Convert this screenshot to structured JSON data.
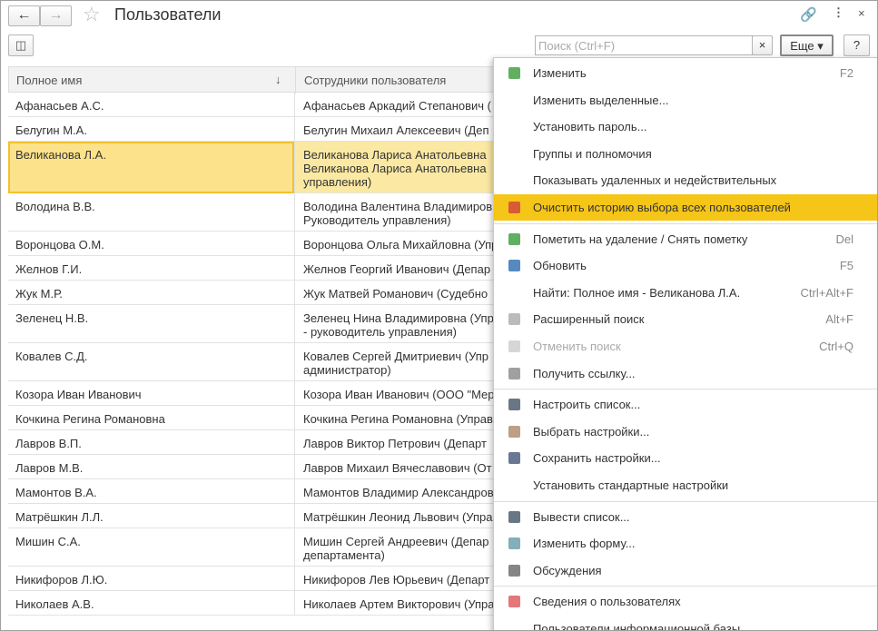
{
  "header": {
    "title": "Пользователи"
  },
  "toolbar": {
    "search_placeholder": "Поиск (Ctrl+F)",
    "more_button": "Еще",
    "help_button": "?"
  },
  "table": {
    "columns": [
      "Полное имя",
      "Сотрудники пользователя"
    ],
    "rows": [
      {
        "name": "Афанасьев А.С.",
        "employee": [
          "Афанасьев Аркадий Степанович ("
        ]
      },
      {
        "name": "Белугин М.А.",
        "employee": [
          "Белугин Михаил Алексеевич (Деп"
        ]
      },
      {
        "name": "Великанова Л.А.",
        "employee": [
          "Великанова Лариса Анатольевна",
          "Великанова Лариса Анатольевна",
          "управления)"
        ],
        "selected": true
      },
      {
        "name": "Володина В.В.",
        "employee": [
          "Володина Валентина Владимиров",
          "Руководитель управления)"
        ]
      },
      {
        "name": "Воронцова О.М.",
        "employee": [
          "Воронцова Ольга Михайловна (Упр"
        ]
      },
      {
        "name": "Желнов Г.И.",
        "employee": [
          "Желнов Георгий Иванович (Депар"
        ]
      },
      {
        "name": "Жук М.Р.",
        "employee": [
          "Жук Матвей Романович (Судебно"
        ]
      },
      {
        "name": "Зеленец Н.В.",
        "employee": [
          "Зеленец Нина Владимировна (Упр",
          "- руководитель управления)"
        ]
      },
      {
        "name": "Ковалев С.Д.",
        "employee": [
          "Ковалев Сергей Дмитриевич (Упр",
          "администратор)"
        ]
      },
      {
        "name": "Козора Иван Иванович",
        "employee": [
          "Козора Иван Иванович (ООО \"Мер"
        ]
      },
      {
        "name": "Кочкина Регина Романовна",
        "employee": [
          "Кочкина Регина Романовна (Управ"
        ]
      },
      {
        "name": "Лавров В.П.",
        "employee": [
          "Лавров Виктор Петрович (Департ"
        ]
      },
      {
        "name": "Лавров М.В.",
        "employee": [
          "Лавров Михаил Вячеславович (От"
        ]
      },
      {
        "name": "Мамонтов В.А.",
        "employee": [
          "Мамонтов Владимир Александров"
        ]
      },
      {
        "name": "Матрёшкин Л.Л.",
        "employee": [
          "Матрёшкин Леонид Львович (Упра"
        ]
      },
      {
        "name": "Мишин С.А.",
        "employee": [
          "Мишин Сергей Андреевич (Депар",
          "департамента)"
        ]
      },
      {
        "name": "Никифоров Л.Ю.",
        "employee": [
          "Никифоров Лев Юрьевич (Департ"
        ]
      },
      {
        "name": "Николаев А.В.",
        "employee": [
          "Николаев Артем Викторович (Упра"
        ]
      }
    ]
  },
  "menu": {
    "groups": [
      {
        "items": [
          {
            "label": "Изменить",
            "shortcut": "F2"
          },
          {
            "label": "Изменить выделенные..."
          },
          {
            "label": "Установить пароль..."
          },
          {
            "label": "Группы и полномочия"
          },
          {
            "label": "Показывать удаленных и недействительных"
          },
          {
            "label": "Очистить историю выбора всех пользователей",
            "highlighted": true
          }
        ]
      },
      {
        "items": [
          {
            "label": "Пометить на удаление / Снять пометку",
            "shortcut": "Del"
          },
          {
            "label": "Обновить",
            "shortcut": "F5"
          },
          {
            "label": "Найти: Полное имя - Великанова Л.А.",
            "shortcut": "Ctrl+Alt+F"
          },
          {
            "label": "Расширенный поиск",
            "shortcut": "Alt+F"
          },
          {
            "label": "Отменить поиск",
            "shortcut": "Ctrl+Q",
            "disabled": true
          },
          {
            "label": "Получить ссылку..."
          }
        ]
      },
      {
        "items": [
          {
            "label": "Настроить список..."
          },
          {
            "label": "Выбрать настройки..."
          },
          {
            "label": "Сохранить настройки..."
          },
          {
            "label": "Установить стандартные настройки"
          }
        ]
      },
      {
        "items": [
          {
            "label": "Вывести список..."
          },
          {
            "label": "Изменить форму..."
          },
          {
            "label": "Обсуждения"
          }
        ]
      },
      {
        "items": [
          {
            "label": "Сведения о пользователях"
          },
          {
            "label": "Пользователи информационной базы"
          }
        ]
      }
    ]
  }
}
